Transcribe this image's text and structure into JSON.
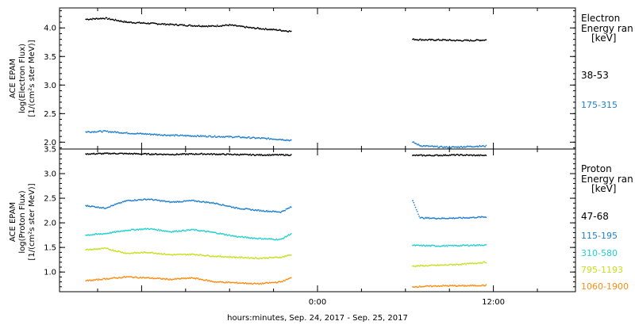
{
  "chart_data": [
    {
      "type": "scatter",
      "panel": "electron",
      "ylabel_lines": [
        "ACE EPAM",
        "log(Electron Flux)",
        "[1/(cm²s ster MeV)]"
      ],
      "yticks": [
        "4.0",
        "3.5",
        "3.0",
        "2.5",
        "2.0"
      ],
      "ytick_values": [
        4.0,
        3.5,
        3.0,
        2.5,
        2.0
      ],
      "ylim": [
        1.88,
        4.35
      ],
      "legend_title_lines": [
        "Electron",
        "Energy ran",
        "[keV]"
      ],
      "series": [
        {
          "name": "38-53",
          "color": "#000000",
          "segments": [
            {
              "x": [
                -15.8,
                -14.5,
                -13.0,
                -11.5,
                -10.0,
                -8.5,
                -7.2,
                -6.0,
                -4.5,
                -3.0,
                -1.8
              ],
              "y": [
                4.15,
                4.17,
                4.1,
                4.08,
                4.06,
                4.04,
                4.03,
                4.05,
                4.0,
                3.97,
                3.94
              ]
            },
            {
              "x": [
                6.5,
                7.5,
                8.5,
                9.5,
                10.5,
                11.5
              ],
              "y": [
                3.8,
                3.79,
                3.79,
                3.78,
                3.78,
                3.79
              ]
            }
          ]
        },
        {
          "name": "175-315",
          "color": "#1f7fd0",
          "segments": [
            {
              "x": [
                -15.8,
                -14.5,
                -13.0,
                -11.5,
                -10.0,
                -8.5,
                -7.0,
                -5.5,
                -4.0,
                -2.5,
                -1.8
              ],
              "y": [
                2.18,
                2.19,
                2.16,
                2.14,
                2.12,
                2.11,
                2.1,
                2.09,
                2.07,
                2.05,
                2.03
              ]
            },
            {
              "x": [
                6.5,
                7.0,
                8.0,
                9.0,
                10.0,
                11.0,
                11.5
              ],
              "y": [
                2.0,
                1.94,
                1.92,
                1.91,
                1.92,
                1.93,
                1.93
              ]
            }
          ]
        }
      ]
    },
    {
      "type": "scatter",
      "panel": "proton",
      "ylabel_lines": [
        "ACE EPAM",
        "log(Proton Flux)",
        "[1/(cm²s ster MeV)]"
      ],
      "yticks": [
        "3.5",
        "3.0",
        "2.5",
        "2.0",
        "1.5",
        "1.0"
      ],
      "ytick_values": [
        3.5,
        3.0,
        2.5,
        2.0,
        1.5,
        1.0
      ],
      "ylim": [
        0.6,
        3.5
      ],
      "legend_title_lines": [
        "Proton",
        "Energy ran",
        "[keV]"
      ],
      "series": [
        {
          "name": "47-68",
          "color": "#000000",
          "segments": [
            {
              "x": [
                -15.8,
                -14.0,
                -12.0,
                -10.0,
                -8.0,
                -6.0,
                -4.0,
                -1.8
              ],
              "y": [
                3.4,
                3.41,
                3.4,
                3.39,
                3.4,
                3.39,
                3.38,
                3.38
              ]
            },
            {
              "x": [
                6.5,
                8.0,
                9.5,
                11.0,
                11.5
              ],
              "y": [
                3.37,
                3.37,
                3.38,
                3.37,
                3.37
              ]
            }
          ]
        },
        {
          "name": "115-195",
          "color": "#1f7fd0",
          "segments": [
            {
              "x": [
                -15.8,
                -14.5,
                -13.0,
                -11.5,
                -10.0,
                -8.5,
                -7.0,
                -5.5,
                -4.0,
                -2.5,
                -1.8
              ],
              "y": [
                2.35,
                2.3,
                2.45,
                2.48,
                2.42,
                2.45,
                2.4,
                2.3,
                2.25,
                2.22,
                2.32
              ]
            },
            {
              "x": [
                6.5,
                7.0,
                8.5,
                10.0,
                11.5
              ],
              "y": [
                2.45,
                2.1,
                2.09,
                2.1,
                2.12
              ]
            }
          ]
        },
        {
          "name": "310-580",
          "color": "#20d0d0",
          "segments": [
            {
              "x": [
                -15.8,
                -14.5,
                -13.0,
                -11.5,
                -10.0,
                -8.5,
                -7.0,
                -5.5,
                -4.0,
                -2.5,
                -1.8
              ],
              "y": [
                1.75,
                1.78,
                1.85,
                1.88,
                1.82,
                1.86,
                1.8,
                1.72,
                1.68,
                1.66,
                1.78
              ]
            },
            {
              "x": [
                6.5,
                8.5,
                10.0,
                11.5
              ],
              "y": [
                1.54,
                1.53,
                1.54,
                1.55
              ]
            }
          ]
        },
        {
          "name": "795-1193",
          "color": "#c8e020",
          "segments": [
            {
              "x": [
                -15.8,
                -14.5,
                -13.0,
                -11.5,
                -10.0,
                -8.5,
                -7.0,
                -5.5,
                -4.0,
                -2.5,
                -1.8
              ],
              "y": [
                1.45,
                1.48,
                1.38,
                1.4,
                1.35,
                1.36,
                1.32,
                1.3,
                1.28,
                1.3,
                1.35
              ]
            },
            {
              "x": [
                6.5,
                8.5,
                10.0,
                11.5
              ],
              "y": [
                1.12,
                1.14,
                1.16,
                1.2
              ]
            }
          ]
        },
        {
          "name": "1060-1900",
          "color": "#ff8c10",
          "segments": [
            {
              "x": [
                -15.8,
                -14.5,
                -13.0,
                -11.5,
                -10.0,
                -8.5,
                -7.0,
                -5.5,
                -4.0,
                -2.5,
                -1.8
              ],
              "y": [
                0.82,
                0.86,
                0.9,
                0.88,
                0.85,
                0.88,
                0.8,
                0.78,
                0.76,
                0.8,
                0.88
              ]
            },
            {
              "x": [
                6.5,
                8.5,
                10.0,
                11.5
              ],
              "y": [
                0.7,
                0.72,
                0.72,
                0.73
              ]
            }
          ]
        }
      ]
    }
  ],
  "x_axis": {
    "xlim": [
      -17.6,
      17.6
    ],
    "tick_labels": [
      "0:00",
      "12:00"
    ],
    "tick_values": [
      0,
      12
    ],
    "minor_tick_step": 3,
    "xlabel": "hours:minutes, Sep. 24, 2017 - Sep. 25, 2017"
  }
}
